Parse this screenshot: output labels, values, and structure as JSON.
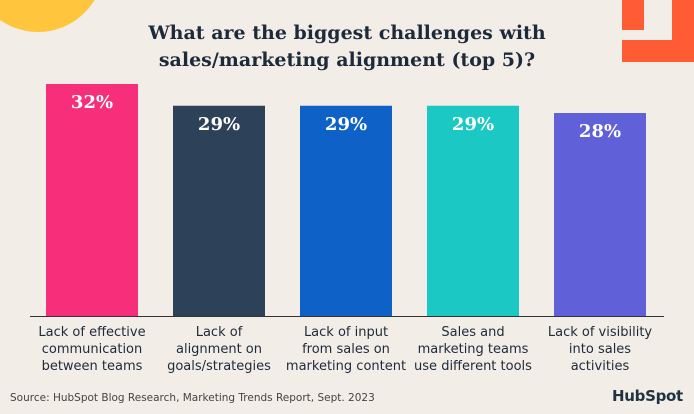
{
  "title_line1": "What are the biggest challenges with",
  "title_line2": "sales/marketing alignment (top 5)?",
  "chart_data": {
    "type": "bar",
    "title": "What are the biggest challenges with sales/marketing alignment (top 5)?",
    "categories": [
      [
        "Lack of effective",
        "communication",
        "between teams"
      ],
      [
        "Lack of",
        "alignment on",
        "goals/strategies"
      ],
      [
        "Lack of input",
        "from sales on",
        "marketing content"
      ],
      [
        "Sales and",
        "marketing teams",
        "use different tools"
      ],
      [
        "Lack of visibility",
        "into sales",
        "activities"
      ]
    ],
    "values": [
      32,
      29,
      29,
      29,
      28
    ],
    "value_labels": [
      "32%",
      "29%",
      "29%",
      "29%",
      "28%"
    ],
    "colors": [
      "#f72e7a",
      "#2d4158",
      "#0e61c6",
      "#1cc8c4",
      "#6060d8"
    ],
    "ylim": [
      0,
      32
    ],
    "grid": false
  },
  "source": "Source: HubSpot Blog Research, Marketing Trends Report, Sept. 2023",
  "logo": "HubSpot"
}
